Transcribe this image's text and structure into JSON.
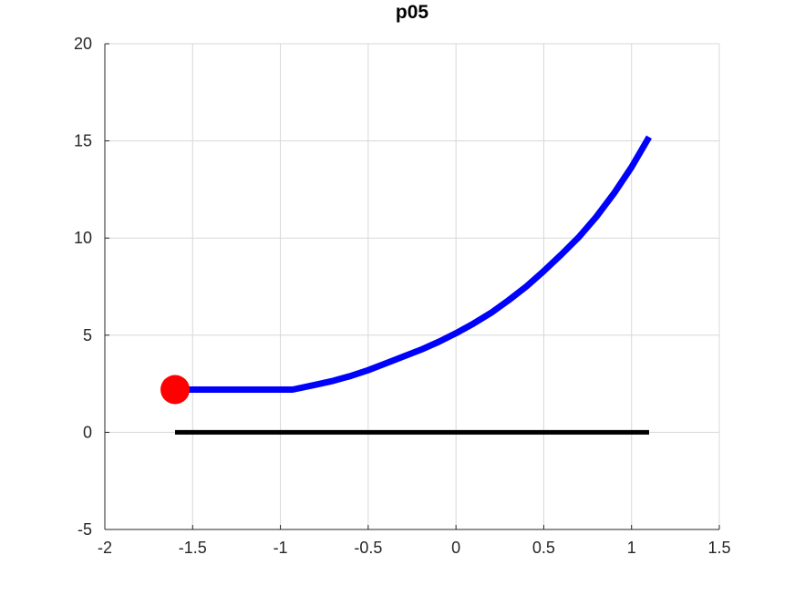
{
  "chart_data": {
    "type": "line",
    "title": "p05",
    "xlabel": "",
    "ylabel": "",
    "xlim": [
      -2,
      1.5
    ],
    "ylim": [
      -5,
      20
    ],
    "x_ticks": [
      -2,
      -1.5,
      -1,
      -0.5,
      0,
      0.5,
      1,
      1.5
    ],
    "x_tick_labels": [
      "-2",
      "-1.5",
      "-1",
      "-0.5",
      "0",
      "0.5",
      "1",
      "1.5"
    ],
    "y_ticks": [
      -5,
      0,
      5,
      10,
      15,
      20
    ],
    "y_tick_labels": [
      "-5",
      "0",
      "5",
      "10",
      "15",
      "20"
    ],
    "grid": true,
    "legend": false,
    "colors": {
      "background": "#ffffff",
      "grid": "#d8d8d8",
      "axis": "#262626",
      "tick_label": "#262626",
      "curve": "#0000ff",
      "baseline": "#000000",
      "marker": "#ff0000"
    },
    "series": [
      {
        "name": "objective-curve",
        "type": "line",
        "color": "#0000ff",
        "line_width": 7,
        "x": [
          -1.6,
          -1.45,
          -1.3,
          -1.15,
          -1.0,
          -0.93,
          -0.8,
          -0.7,
          -0.6,
          -0.5,
          -0.4,
          -0.3,
          -0.2,
          -0.1,
          0.0,
          0.1,
          0.2,
          0.3,
          0.4,
          0.5,
          0.6,
          0.7,
          0.8,
          0.9,
          1.0,
          1.1
        ],
        "y": [
          2.2,
          2.2,
          2.2,
          2.2,
          2.2,
          2.2,
          2.45,
          2.65,
          2.9,
          3.2,
          3.55,
          3.9,
          4.25,
          4.65,
          5.1,
          5.6,
          6.15,
          6.8,
          7.5,
          8.3,
          9.15,
          10.05,
          11.1,
          12.3,
          13.65,
          15.2
        ]
      },
      {
        "name": "baseline",
        "type": "line",
        "color": "#000000",
        "line_width": 5,
        "x": [
          -1.6,
          1.1
        ],
        "y": [
          0,
          0
        ]
      },
      {
        "name": "start-point",
        "type": "scatter",
        "color": "#ff0000",
        "marker": "circle",
        "marker_radius_px": 16,
        "x": [
          -1.6
        ],
        "y": [
          2.2
        ]
      }
    ]
  }
}
